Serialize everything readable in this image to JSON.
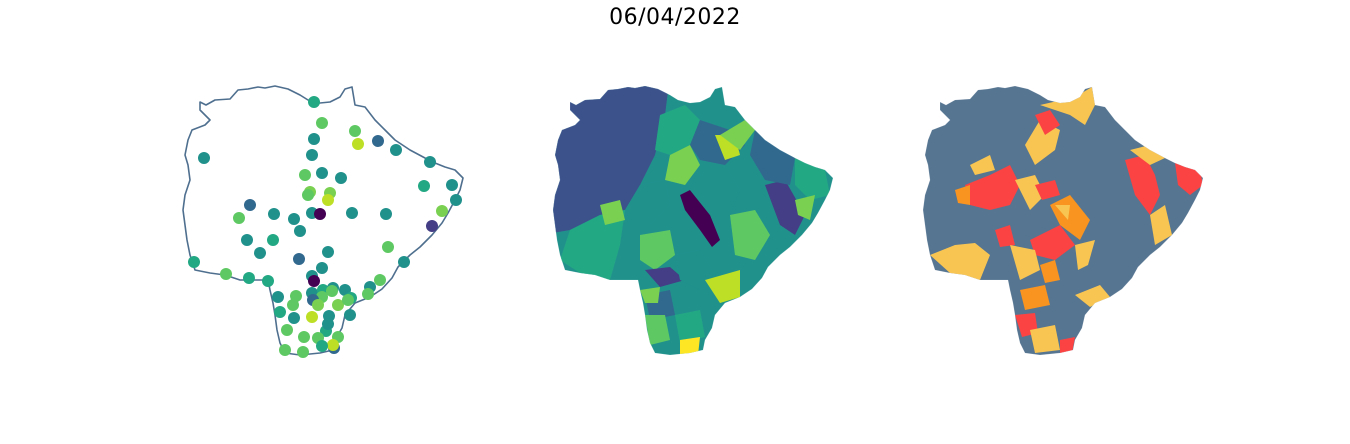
{
  "title": "06/04/2022",
  "colors": {
    "outline": "#4f6f8f",
    "viridis": [
      "#440154",
      "#433e85",
      "#31688e",
      "#21918c",
      "#23a884",
      "#5ec962",
      "#7ad151",
      "#bddf26",
      "#fde725"
    ],
    "class_colors": [
      "#567591",
      "#f9c552",
      "#f99420",
      "#fb4343"
    ]
  },
  "maps": [
    {
      "name": "station-points-map",
      "type": "point map"
    },
    {
      "name": "municipality-choropleth-map",
      "type": "continuous choropleth"
    },
    {
      "name": "municipality-class-map",
      "type": "categorical choropleth"
    }
  ]
}
